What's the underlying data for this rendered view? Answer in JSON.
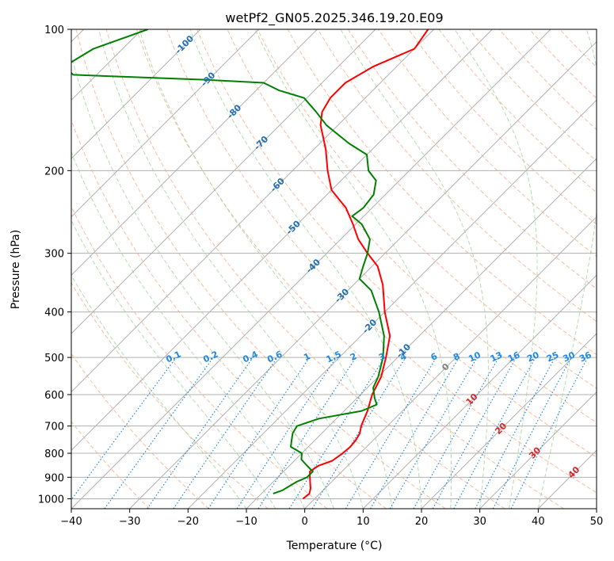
{
  "chart_data": {
    "type": "line",
    "title": "wetPf2_GN05.2025.346.19.20.E09",
    "xlabel": "Temperature (°C)",
    "ylabel": "Pressure (hPa)",
    "xlim": [
      -40,
      50
    ],
    "ylim_pressure": [
      1050,
      100
    ],
    "skew_t": true,
    "x_ticks": [
      -40,
      -30,
      -20,
      -10,
      0,
      10,
      20,
      30,
      40,
      50
    ],
    "x_tick_labels": [
      "−40",
      "−30",
      "−20",
      "−10",
      "0",
      "10",
      "20",
      "30",
      "40",
      "50"
    ],
    "y_ticks": [
      1000,
      900,
      800,
      700,
      600,
      500,
      400,
      300,
      200,
      100
    ],
    "y_tick_labels": [
      "1000",
      "900",
      "800",
      "700",
      "600",
      "500",
      "400",
      "300",
      "200",
      "100"
    ],
    "grid": true,
    "series": [
      {
        "role": "temperature",
        "color": "#ff0000",
        "points": [
          [
            1000,
            -2
          ],
          [
            975,
            -1.8
          ],
          [
            950,
            -2.5
          ],
          [
            925,
            -3.5
          ],
          [
            900,
            -4.5
          ],
          [
            875,
            -5.5
          ],
          [
            850,
            -5
          ],
          [
            830,
            -3.5
          ],
          [
            800,
            -3
          ],
          [
            775,
            -2.8
          ],
          [
            750,
            -3
          ],
          [
            725,
            -3.5
          ],
          [
            700,
            -4.5
          ],
          [
            650,
            -6
          ],
          [
            600,
            -8
          ],
          [
            550,
            -9.5
          ],
          [
            500,
            -12
          ],
          [
            450,
            -15
          ],
          [
            400,
            -20
          ],
          [
            350,
            -25
          ],
          [
            320,
            -29
          ],
          [
            300,
            -33
          ],
          [
            280,
            -37
          ],
          [
            260,
            -40.5
          ],
          [
            240,
            -44.5
          ],
          [
            220,
            -50
          ],
          [
            200,
            -54
          ],
          [
            180,
            -58
          ],
          [
            160,
            -63
          ],
          [
            150,
            -65
          ],
          [
            140,
            -66
          ],
          [
            130,
            -66
          ],
          [
            120,
            -64
          ],
          [
            110,
            -60
          ],
          [
            100,
            -61
          ]
        ]
      },
      {
        "role": "dewpoint",
        "color": "#008000",
        "points": [
          [
            975,
            -8
          ],
          [
            960,
            -7
          ],
          [
            940,
            -6.5
          ],
          [
            920,
            -6
          ],
          [
            900,
            -5
          ],
          [
            875,
            -5
          ],
          [
            850,
            -7
          ],
          [
            825,
            -9
          ],
          [
            800,
            -10
          ],
          [
            775,
            -13
          ],
          [
            750,
            -14
          ],
          [
            725,
            -15
          ],
          [
            700,
            -15.5
          ],
          [
            675,
            -13
          ],
          [
            650,
            -7
          ],
          [
            630,
            -5.5
          ],
          [
            610,
            -7
          ],
          [
            580,
            -9
          ],
          [
            550,
            -10
          ],
          [
            500,
            -12.5
          ],
          [
            450,
            -16
          ],
          [
            400,
            -21
          ],
          [
            360,
            -26
          ],
          [
            340,
            -30
          ],
          [
            320,
            -31.5
          ],
          [
            300,
            -33
          ],
          [
            280,
            -35
          ],
          [
            260,
            -39
          ],
          [
            250,
            -42
          ],
          [
            240,
            -41.5
          ],
          [
            225,
            -42
          ],
          [
            210,
            -44
          ],
          [
            200,
            -47
          ],
          [
            185,
            -50
          ],
          [
            175,
            -55
          ],
          [
            160,
            -62
          ],
          [
            150,
            -66
          ],
          [
            140,
            -70.5
          ],
          [
            135,
            -76
          ],
          [
            130,
            -80
          ],
          [
            128,
            -91
          ],
          [
            125,
            -114
          ],
          [
            120,
            -117
          ],
          [
            110,
            -115
          ],
          [
            100,
            -109
          ]
        ]
      }
    ],
    "dry_adiabats_C": [
      -30,
      -20,
      -10,
      0,
      10,
      20,
      30,
      40,
      50,
      60,
      70,
      80,
      90,
      100,
      110,
      120,
      130,
      140,
      150,
      160,
      170,
      180
    ],
    "moist_adiabats_C": [
      -10,
      -5,
      0,
      5,
      10,
      15,
      20,
      25,
      30,
      35,
      40
    ],
    "mixing_ratio_lines_gkg": [
      "0.1",
      "0.2",
      "0.4",
      "0.6",
      "1",
      "1.5",
      "2",
      "3",
      "4",
      "6",
      "8",
      "10",
      "13",
      "16",
      "20",
      "25",
      "30",
      "36"
    ],
    "isotherm_labels": {
      "negative": [
        "-100",
        "-90",
        "-80",
        "-70",
        "-60",
        "-50",
        "-40",
        "-30",
        "-20",
        "-10"
      ],
      "zero": "0",
      "positive": [
        "10",
        "20",
        "30",
        "40"
      ]
    },
    "colors": {
      "temperature": "#ff0000",
      "dewpoint": "#008000",
      "dry_adiabat": "#f4a582",
      "moist_adiabat": "#9fd39f",
      "mixing_ratio": "#1e88e5",
      "isotherm": "#888888",
      "isotherm_label_neg": "#1f6fb2",
      "isotherm_label_pos": "#d62728",
      "isotherm_label_zero": "#808080",
      "grid": "#b0b0b0"
    }
  }
}
